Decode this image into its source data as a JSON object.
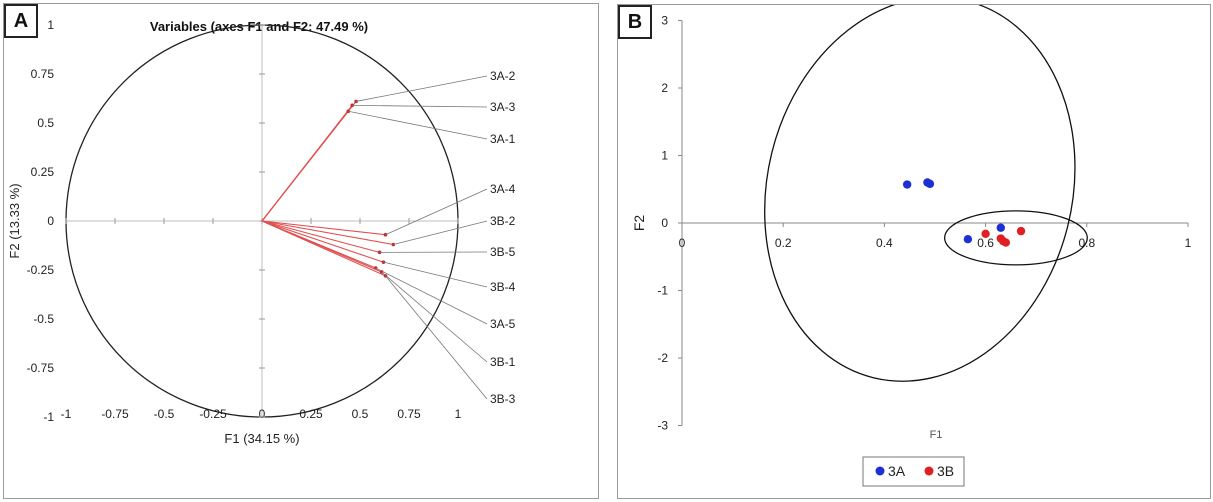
{
  "chart_data": [
    {
      "panel_tag": "A",
      "type": "scatter",
      "subtype": "correlation-circle",
      "title": "Variables (axes F1 and F2: 47.49 %)",
      "xlabel": "F1 (34.15 %)",
      "ylabel": "F2 (13.33 %)",
      "xlim": [
        -1,
        1
      ],
      "ylim": [
        -1,
        1
      ],
      "xticks": [
        "-1",
        "-0.75",
        "-0.5",
        "-0.25",
        "0",
        "0.25",
        "0.5",
        "0.75",
        "1"
      ],
      "yticks": [
        "1",
        "0.75",
        "0.5",
        "0.25",
        "0",
        "-0.25",
        "-0.5",
        "-0.75",
        "-1"
      ],
      "circle_radius": 1,
      "vector_color": "#e05050",
      "vectors": [
        {
          "name": "3A-2",
          "x": 0.48,
          "y": 0.61
        },
        {
          "name": "3A-3",
          "x": 0.46,
          "y": 0.59
        },
        {
          "name": "3A-1",
          "x": 0.44,
          "y": 0.56
        },
        {
          "name": "3A-4",
          "x": 0.63,
          "y": -0.07
        },
        {
          "name": "3B-2",
          "x": 0.67,
          "y": -0.12
        },
        {
          "name": "3B-5",
          "x": 0.6,
          "y": -0.16
        },
        {
          "name": "3B-4",
          "x": 0.62,
          "y": -0.21
        },
        {
          "name": "3A-5",
          "x": 0.58,
          "y": -0.24
        },
        {
          "name": "3B-1",
          "x": 0.61,
          "y": -0.26
        },
        {
          "name": "3B-3",
          "x": 0.63,
          "y": -0.28
        }
      ]
    },
    {
      "panel_tag": "B",
      "type": "scatter",
      "xlabel": "F1",
      "ylabel": "F2",
      "xlim": [
        0,
        1
      ],
      "ylim": [
        -3,
        3
      ],
      "xticks": [
        "0",
        "0.2",
        "0.4",
        "0.6",
        "0.8",
        "1"
      ],
      "yticks": [
        "3",
        "2",
        "1",
        "0",
        "-1",
        "-2",
        "-3"
      ],
      "legend_position": "bottom",
      "series": [
        {
          "name": "3A",
          "color": "#1f2fd6",
          "points": [
            [
              0.445,
              0.57
            ],
            [
              0.485,
              0.6
            ],
            [
              0.49,
              0.58
            ],
            [
              0.565,
              -0.24
            ],
            [
              0.63,
              -0.07
            ]
          ]
        },
        {
          "name": "3B",
          "color": "#e02020",
          "points": [
            [
              0.6,
              -0.16
            ],
            [
              0.63,
              -0.23
            ],
            [
              0.635,
              -0.27
            ],
            [
              0.64,
              -0.29
            ],
            [
              0.67,
              -0.12
            ]
          ]
        }
      ],
      "ellipses": [
        {
          "center": [
            0.47,
            0.5
          ],
          "semi_axis_a": 0.615,
          "semi_axis_b": 0.435,
          "rotation_deg": -61.6
        },
        {
          "center": [
            0.66,
            -0.22
          ],
          "semi_axis_a": 0.141,
          "semi_axis_b": 0.4,
          "rotation_deg": 0
        }
      ]
    }
  ]
}
